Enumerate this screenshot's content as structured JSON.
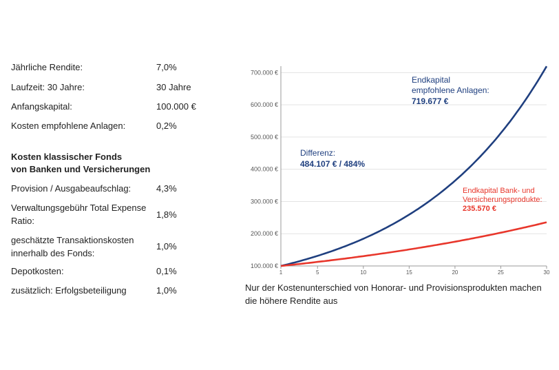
{
  "table": {
    "basic": [
      {
        "label": "Jährliche Rendite:",
        "value": "7,0%"
      },
      {
        "label": "Laufzeit: 30 Jahre:",
        "value": "30 Jahre"
      },
      {
        "label": "Anfangskapital:",
        "value": "100.000 €"
      },
      {
        "label": "Kosten empfohlene Anlagen:",
        "value": "0,2%"
      }
    ],
    "section_heading_line1": "Kosten klassischer Fonds",
    "section_heading_line2": "von Banken und Versicherungen",
    "costs": [
      {
        "label": "Provision / Ausgabeaufschlag:",
        "value": "4,3%"
      },
      {
        "label": "Verwaltungsgebühr Total Expense Ratio:",
        "value": "1,8%"
      },
      {
        "label": "geschätzte Transaktionskosten innerhalb des Fonds:",
        "value": "1,0%"
      },
      {
        "label": "Depotkosten:",
        "value": "0,1%"
      },
      {
        "label": "zusätzlich: Erfolgsbeteiligung",
        "value": "1,0%"
      }
    ]
  },
  "caption_line1": "Nur der Kostenunterschied von Honorar- und Provisionsprodukten machen",
  "caption_line2": "die höhere Rendite aus",
  "chart_data": {
    "type": "line",
    "xlim": [
      1,
      30
    ],
    "ylim": [
      100000,
      720000
    ],
    "x_ticks": [
      1,
      5,
      10,
      15,
      20,
      25,
      30
    ],
    "y_ticks": [
      "100.000 €",
      "200.000 €",
      "300.000 €",
      "400.000 €",
      "500.000 €",
      "600.000 €",
      "700.000 €"
    ],
    "y_tick_values": [
      100000,
      200000,
      300000,
      400000,
      500000,
      600000,
      700000
    ],
    "grid": "horizontal",
    "series": [
      {
        "key": "honorar",
        "color": "#1f3f7f",
        "start": 100000,
        "end": 719677
      },
      {
        "key": "provision",
        "color": "#e8362b",
        "start": 100000,
        "end": 235570
      }
    ],
    "annotations": {
      "endkapital_title_line1": "Endkapital",
      "endkapital_title_line2": "empfohlene Anlagen:",
      "endkapital_value": "719.677 €",
      "differenz_title": "Differenz:",
      "differenz_value": "484.107 € / 484%",
      "bank_line1": "Endkapital Bank- und",
      "bank_line2": "Versicherungsprodukte:",
      "bank_value": "235.570 €"
    }
  }
}
